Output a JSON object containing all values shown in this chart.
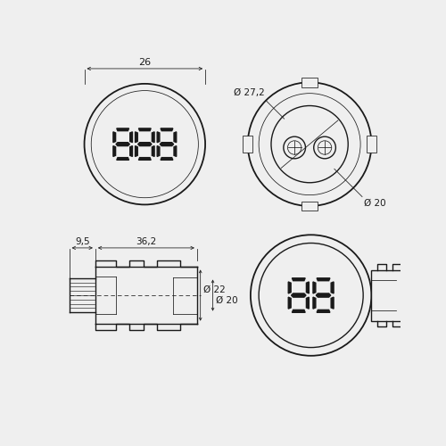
{
  "bg_color": "#efefef",
  "line_color": "#1a1a1a",
  "line_width": 1.0,
  "thin_line": 0.55,
  "font_size": 7.5,
  "dims": {
    "top_dim_26": "26",
    "dia_272": "Ø 27,2",
    "dim_9_5": "9,5",
    "dim_36_2": "36,2",
    "dia_20_side": "Ø 20",
    "dia_20_bot": "Ø 20",
    "dia_22": "Ø 22"
  }
}
